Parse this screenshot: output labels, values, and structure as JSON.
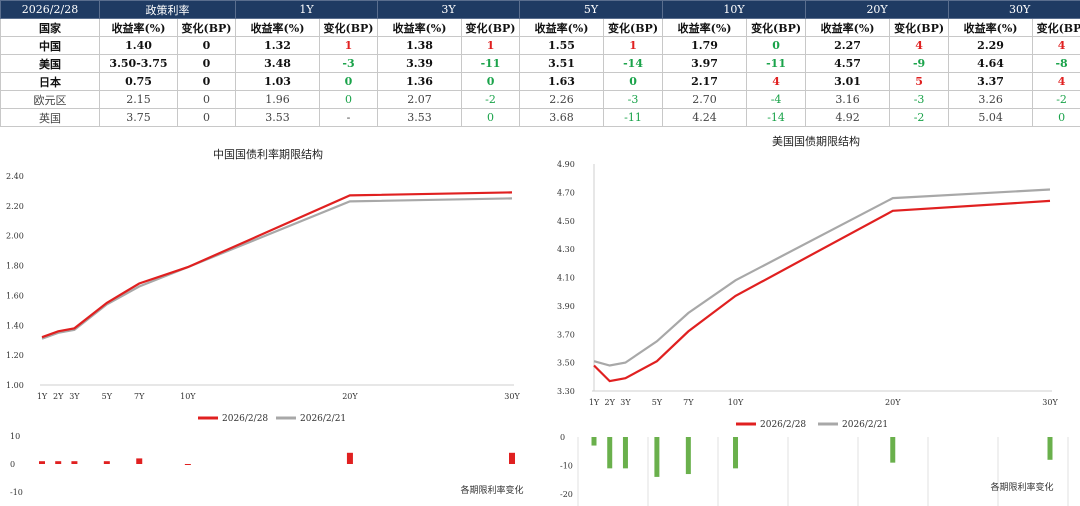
{
  "table": {
    "date": "2026/2/28",
    "policy_header": "政策利率",
    "tenors": [
      "1Y",
      "3Y",
      "5Y",
      "10Y",
      "20Y",
      "30Y"
    ],
    "country_label": "国家",
    "yield_label": "收益率(%)",
    "change_label": "变化(BP)",
    "rows": [
      {
        "name": "中国",
        "policy": "1.40",
        "policy_chg": "0",
        "style": "bold",
        "cells": [
          [
            "1.32",
            "1"
          ],
          [
            "1.38",
            "1"
          ],
          [
            "1.55",
            "1"
          ],
          [
            "1.79",
            "0"
          ],
          [
            "2.27",
            "4"
          ],
          [
            "2.29",
            "4"
          ]
        ]
      },
      {
        "name": "美国",
        "policy": "3.50-3.75",
        "policy_chg": "0",
        "style": "bold",
        "cells": [
          [
            "3.48",
            "-3"
          ],
          [
            "3.39",
            "-11"
          ],
          [
            "3.51",
            "-14"
          ],
          [
            "3.97",
            "-11"
          ],
          [
            "4.57",
            "-9"
          ],
          [
            "4.64",
            "-8"
          ]
        ]
      },
      {
        "name": "日本",
        "policy": "0.75",
        "policy_chg": "0",
        "style": "bold",
        "cells": [
          [
            "1.03",
            "0"
          ],
          [
            "1.36",
            "0"
          ],
          [
            "1.63",
            "0"
          ],
          [
            "2.17",
            "4"
          ],
          [
            "3.01",
            "5"
          ],
          [
            "3.37",
            "4"
          ]
        ]
      },
      {
        "name": "欧元区",
        "policy": "2.15",
        "policy_chg": "0",
        "style": "light",
        "cells": [
          [
            "1.96",
            "0"
          ],
          [
            "2.07",
            "-2"
          ],
          [
            "2.26",
            "-3"
          ],
          [
            "2.70",
            "-4"
          ],
          [
            "3.16",
            "-3"
          ],
          [
            "3.26",
            "-2"
          ]
        ]
      },
      {
        "name": "英国",
        "policy": "3.75",
        "policy_chg": "0",
        "style": "light",
        "cells": [
          [
            "3.53",
            "-"
          ],
          [
            "3.53",
            "0"
          ],
          [
            "3.68",
            "-11"
          ],
          [
            "4.24",
            "-14"
          ],
          [
            "4.92",
            "-2"
          ],
          [
            "5.04",
            "0"
          ]
        ]
      }
    ]
  },
  "chart_data": [
    {
      "type": "line",
      "title": "中国国债利率期限结构",
      "x_labels": [
        "1Y",
        "2Y",
        "3Y",
        "5Y",
        "7Y",
        "10Y",
        "20Y",
        "30Y"
      ],
      "x_years": [
        1,
        2,
        3,
        5,
        7,
        10,
        20,
        30
      ],
      "ylim": [
        1.0,
        2.4
      ],
      "y_ticks": [
        "1.00",
        "1.20",
        "1.40",
        "1.60",
        "1.80",
        "2.00",
        "2.20",
        "2.40"
      ],
      "series": [
        {
          "name": "2026/2/28",
          "color": "#e02020",
          "values": [
            1.32,
            1.36,
            1.38,
            1.55,
            1.68,
            1.79,
            2.27,
            2.29
          ]
        },
        {
          "name": "2026/2/21",
          "color": "#a8a8a8",
          "values": [
            1.31,
            1.35,
            1.37,
            1.54,
            1.66,
            1.79,
            2.23,
            2.25
          ]
        }
      ],
      "change": {
        "label": "各期限利率变化",
        "ylim": [
          -10,
          10
        ],
        "y_ticks": [
          "10",
          "0",
          "-10"
        ],
        "color": "#e02020",
        "values": [
          1,
          1,
          1,
          1,
          2,
          0,
          4,
          4
        ]
      }
    },
    {
      "type": "line",
      "title": "美国国债期限结构",
      "x_labels": [
        "1Y",
        "2Y",
        "3Y",
        "5Y",
        "7Y",
        "10Y",
        "20Y",
        "30Y"
      ],
      "x_years": [
        1,
        2,
        3,
        5,
        7,
        10,
        20,
        30
      ],
      "ylim": [
        3.3,
        4.9
      ],
      "y_ticks": [
        "3.30",
        "3.50",
        "3.70",
        "3.90",
        "4.10",
        "4.30",
        "4.50",
        "4.70",
        "4.90"
      ],
      "series": [
        {
          "name": "2026/2/28",
          "color": "#e02020",
          "values": [
            3.48,
            3.37,
            3.39,
            3.51,
            3.72,
            3.97,
            4.57,
            4.64
          ]
        },
        {
          "name": "2026/2/21",
          "color": "#a8a8a8",
          "values": [
            3.51,
            3.48,
            3.5,
            3.65,
            3.85,
            4.08,
            4.66,
            4.72
          ]
        }
      ],
      "change": {
        "label": "各期限利率变化",
        "ylim": [
          -20,
          0
        ],
        "y_ticks": [
          "0",
          "-10",
          "-20"
        ],
        "color": "#6ab04c",
        "values": [
          -3,
          -11,
          -11,
          -14,
          -13,
          -11,
          -9,
          -8
        ]
      }
    }
  ]
}
